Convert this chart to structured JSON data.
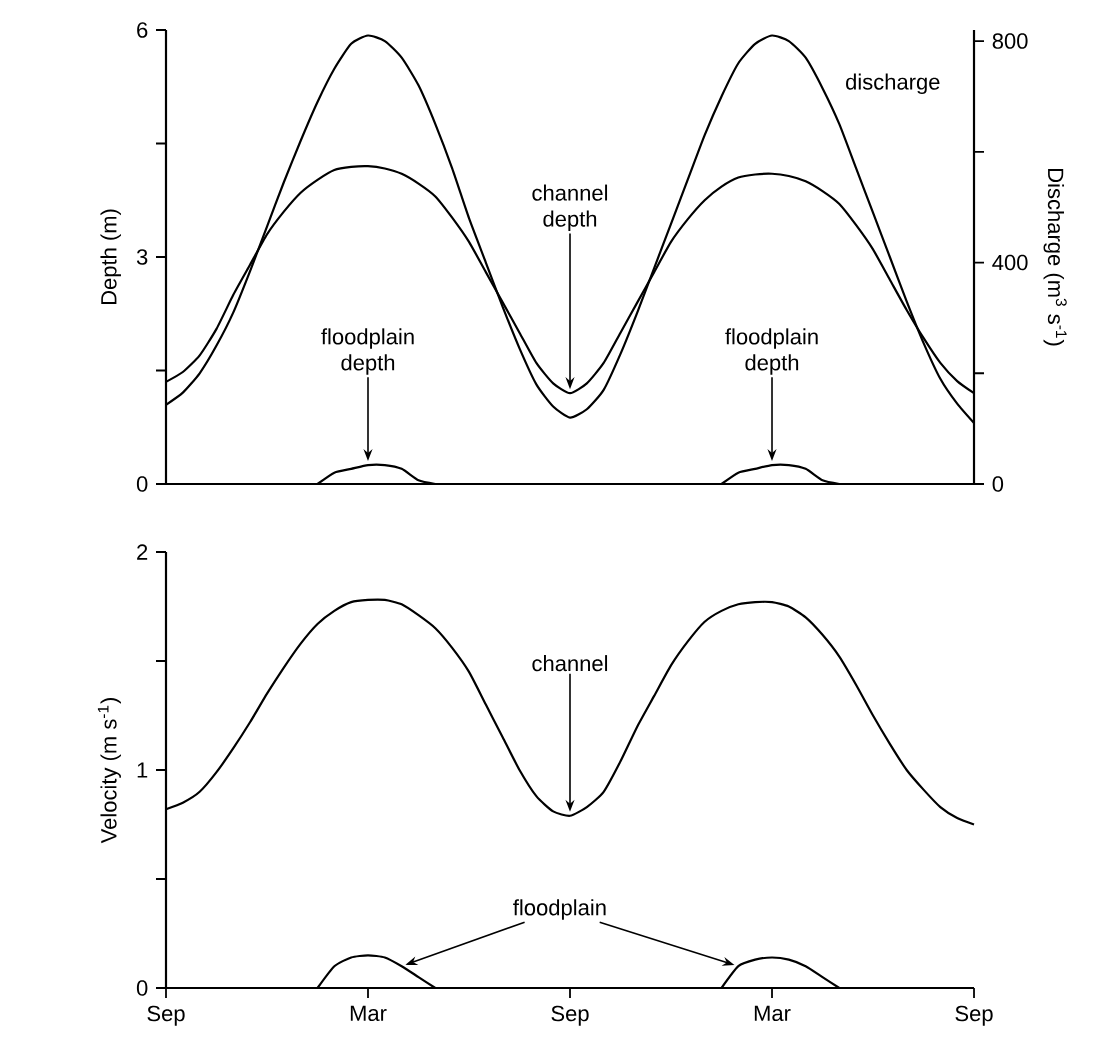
{
  "chart_data": [
    {
      "type": "line",
      "categories": [
        null,
        null,
        null,
        null,
        null,
        null,
        null,
        null,
        null,
        null,
        null,
        null,
        null,
        null,
        null,
        null,
        null,
        null,
        null,
        null,
        null,
        null,
        null,
        null,
        null,
        null,
        null,
        null,
        null,
        null,
        null,
        null,
        null,
        null,
        null,
        null,
        null,
        null,
        null,
        null,
        null,
        null,
        null,
        null,
        null,
        null,
        null,
        null,
        null
      ],
      "ylim": [
        0,
        6
      ],
      "yticks": [
        0,
        {
          "value": 1.5,
          "label": null
        },
        3,
        {
          "value": 4.5,
          "label": null
        },
        6
      ],
      "ylabel": "Depth (m)",
      "y2lim": [
        0,
        820
      ],
      "y2ticks": [
        0,
        {
          "value": 200,
          "label": null
        },
        400,
        {
          "value": 600,
          "label": null
        },
        800
      ],
      "y2label": "Discharge (m$^{3}$ s$^{-1}$)",
      "series": [
        {
          "name": "channel depth",
          "color": "#000000",
          "values": [
            1.35,
            1.48,
            1.7,
            2.05,
            2.5,
            2.9,
            3.3,
            3.6,
            3.85,
            4.02,
            4.15,
            4.19,
            4.2,
            4.17,
            4.1,
            3.97,
            3.8,
            3.52,
            3.2,
            2.8,
            2.4,
            2.0,
            1.6,
            1.33,
            1.2,
            1.33,
            1.6,
            2.0,
            2.4,
            2.8,
            3.2,
            3.5,
            3.75,
            3.93,
            4.05,
            4.09,
            4.1,
            4.07,
            4.0,
            3.87,
            3.7,
            3.42,
            3.1,
            2.7,
            2.3,
            1.93,
            1.6,
            1.36,
            1.2
          ]
        },
        {
          "name": "floodplain depth",
          "color": "#000000",
          "values": [
            null,
            null,
            null,
            null,
            null,
            null,
            null,
            null,
            null,
            0,
            0.15,
            0.2,
            0.25,
            0.25,
            0.2,
            0.05,
            0,
            null,
            null,
            null,
            null,
            null,
            null,
            null,
            null,
            null,
            null,
            null,
            null,
            null,
            null,
            null,
            null,
            0,
            0.15,
            0.2,
            0.25,
            0.25,
            0.2,
            0.05,
            0,
            null,
            null,
            null,
            null,
            null,
            null,
            null,
            null
          ]
        },
        {
          "name": "discharge",
          "color": "#000000",
          "axis": "y2",
          "values": [
            143,
            165,
            200,
            250,
            310,
            385,
            465,
            545,
            620,
            690,
            750,
            795,
            810,
            800,
            770,
            720,
            650,
            570,
            480,
            400,
            320,
            245,
            180,
            140,
            120,
            135,
            170,
            235,
            310,
            390,
            470,
            550,
            630,
            700,
            760,
            795,
            810,
            800,
            770,
            715,
            650,
            570,
            490,
            410,
            330,
            255,
            190,
            145,
            110
          ]
        }
      ]
    },
    {
      "type": "line",
      "categories": [
        "Sep",
        null,
        null,
        null,
        null,
        null,
        null,
        null,
        null,
        null,
        null,
        null,
        "Mar",
        null,
        null,
        null,
        null,
        null,
        null,
        null,
        null,
        null,
        null,
        null,
        "Sep",
        null,
        null,
        null,
        null,
        null,
        null,
        null,
        null,
        null,
        null,
        null,
        "Mar",
        null,
        null,
        null,
        null,
        null,
        null,
        null,
        null,
        null,
        null,
        null,
        "Sep"
      ],
      "ylim": [
        0,
        2
      ],
      "yticks": [
        0,
        {
          "value": 0.5,
          "label": null
        },
        1,
        {
          "value": 1.5,
          "label": null
        },
        2
      ],
      "ylabel": "Velocity (m s$^{-1}$)",
      "series": [
        {
          "name": "channel",
          "color": "#000000",
          "values": [
            0.82,
            0.85,
            0.9,
            0.99,
            1.1,
            1.22,
            1.35,
            1.47,
            1.58,
            1.67,
            1.73,
            1.77,
            1.78,
            1.78,
            1.76,
            1.71,
            1.65,
            1.56,
            1.45,
            1.3,
            1.15,
            1.0,
            0.88,
            0.81,
            0.79,
            0.83,
            0.9,
            1.04,
            1.2,
            1.34,
            1.48,
            1.59,
            1.68,
            1.73,
            1.76,
            1.77,
            1.77,
            1.75,
            1.7,
            1.62,
            1.52,
            1.39,
            1.25,
            1.12,
            1.0,
            0.91,
            0.83,
            0.78,
            0.75
          ]
        },
        {
          "name": "floodplain",
          "color": "#000000",
          "values": [
            null,
            null,
            null,
            null,
            null,
            null,
            null,
            null,
            null,
            0,
            0.1,
            0.14,
            0.15,
            0.14,
            0.1,
            0.05,
            0,
            null,
            null,
            null,
            null,
            null,
            null,
            null,
            null,
            null,
            null,
            null,
            null,
            null,
            null,
            null,
            null,
            0,
            0.1,
            0.13,
            0.14,
            0.13,
            0.1,
            0.05,
            0,
            null,
            null,
            null,
            null,
            null,
            null,
            null,
            null
          ]
        }
      ]
    }
  ]
}
